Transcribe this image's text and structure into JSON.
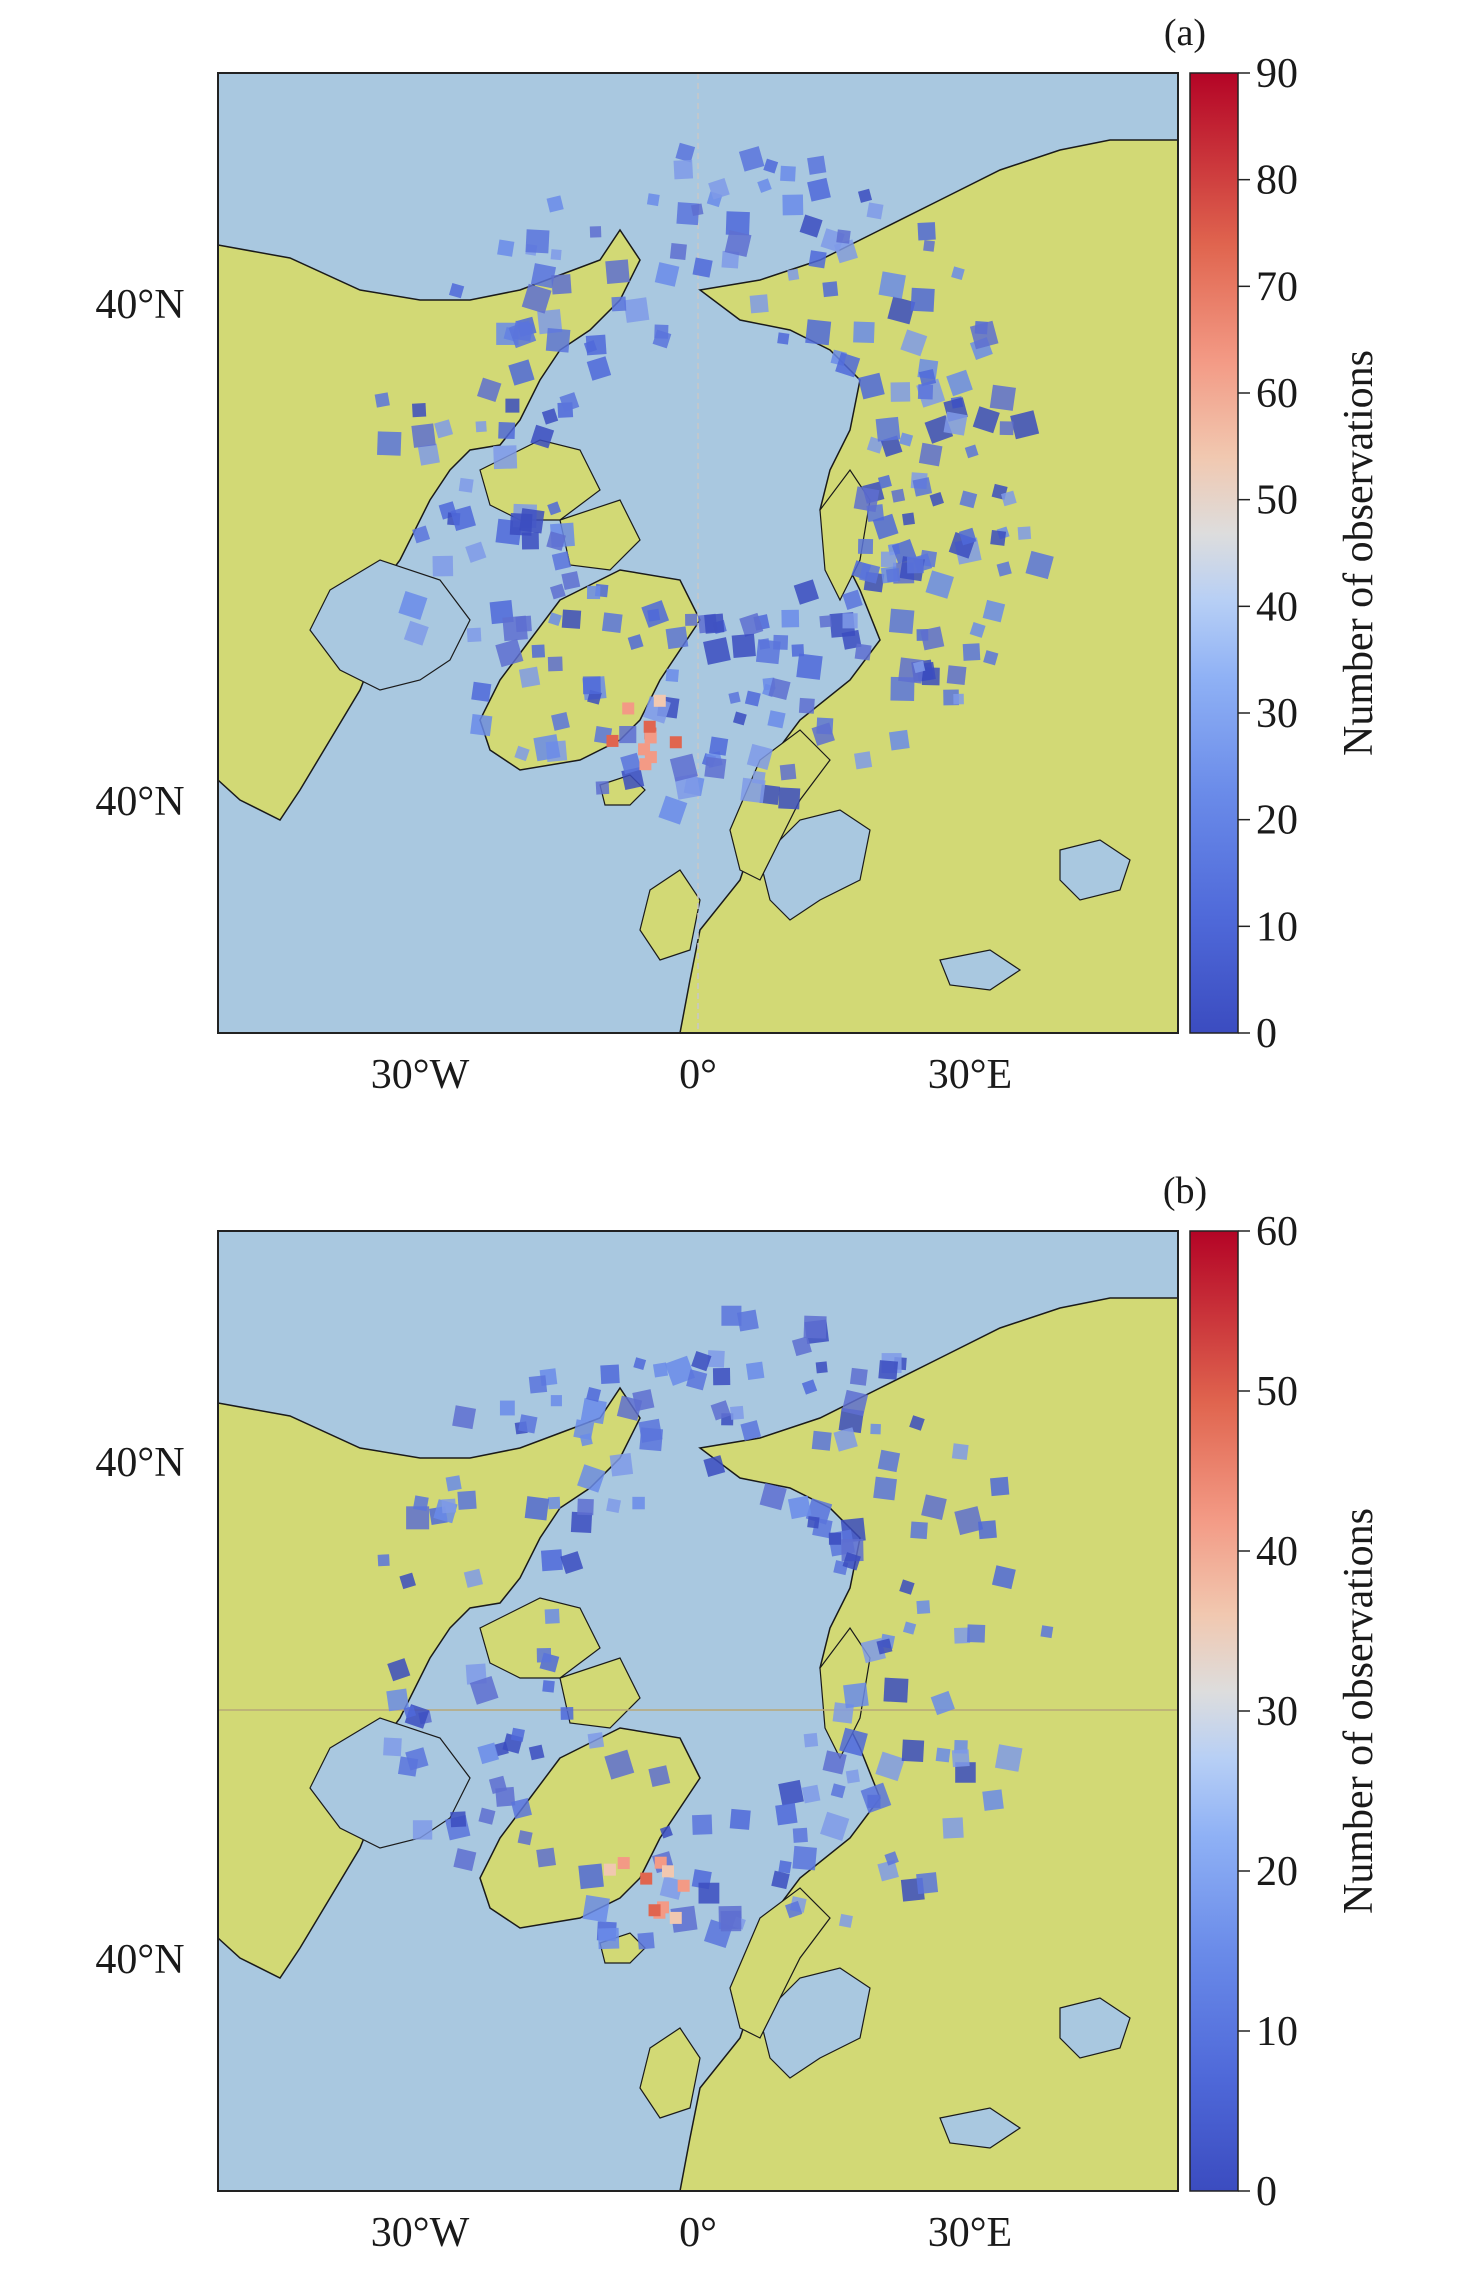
{
  "panels": [
    {
      "id": "a",
      "label": "(a)",
      "lat_labels": [
        "40°N",
        "40°N"
      ],
      "lon_labels": [
        "30°W",
        "0°",
        "30°E"
      ],
      "colorbar": {
        "label": "Number of observations",
        "ticks": [
          "0",
          "10",
          "20",
          "30",
          "40",
          "50",
          "60",
          "70",
          "80",
          "90"
        ],
        "min": 0,
        "max": 90,
        "colormap": "coolwarm"
      }
    },
    {
      "id": "b",
      "label": "(b)",
      "lat_labels": [
        "40°N",
        "40°N"
      ],
      "lon_labels": [
        "30°W",
        "0°",
        "30°E"
      ],
      "colorbar": {
        "label": "Number of observations",
        "ticks": [
          "0",
          "10",
          "20",
          "30",
          "40",
          "50",
          "60"
        ],
        "min": 0,
        "max": 60,
        "colormap": "coolwarm"
      }
    }
  ],
  "colors": {
    "ocean": "#a9c8e0",
    "land": "#d2d975",
    "coast": "#1a1a1a"
  }
}
